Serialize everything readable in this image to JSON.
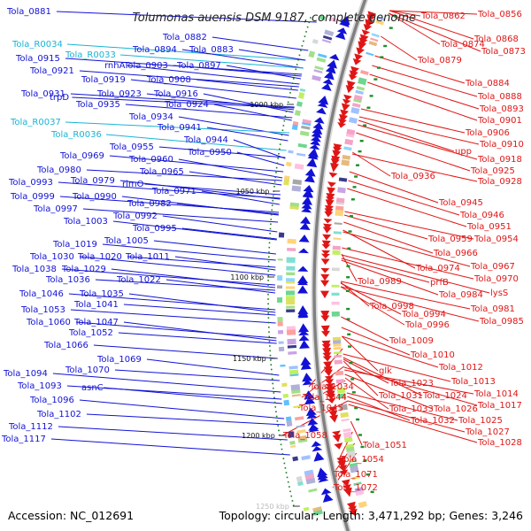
{
  "title": "Tolumonas auensis DSM 9187, complete genome",
  "footer": {
    "accession": "Accession: NC_012691",
    "summary": "Topology: circular; Length: 3,471,292 bp; Genes: 3,246"
  },
  "colors": {
    "forward": "#1212d6",
    "reverse": "#e01616",
    "rna": "#19b4d4",
    "backbone": "#808080"
  },
  "ticks": [
    "1000 kbp",
    "1050 kbp",
    "1100 kbp",
    "1150 kbp",
    "1200 kbp",
    "1250 kbp"
  ],
  "left_labels": [
    {
      "text": "Tola_0881",
      "type": "cds"
    },
    {
      "text": "Tola_0882",
      "type": "cds"
    },
    {
      "text": "Tola_R0034",
      "type": "rna"
    },
    {
      "text": "Tola_0894",
      "type": "cds"
    },
    {
      "text": "Tola_0883",
      "type": "cds"
    },
    {
      "text": "Tola_R0033",
      "type": "rna"
    },
    {
      "text": "Tola_0915",
      "type": "cds"
    },
    {
      "text": "rnhA",
      "type": "cds"
    },
    {
      "text": "Tola_0903",
      "type": "cds"
    },
    {
      "text": "Tola_0897",
      "type": "cds"
    },
    {
      "text": "Tola_0921",
      "type": "cds"
    },
    {
      "text": "Tola_0919",
      "type": "cds"
    },
    {
      "text": "Tola_0908",
      "type": "cds"
    },
    {
      "text": "Tola_0931",
      "type": "cds"
    },
    {
      "text": "Tola_0923",
      "type": "cds"
    },
    {
      "text": "Tola_0916",
      "type": "cds"
    },
    {
      "text": "trpD",
      "type": "cds"
    },
    {
      "text": "Tola_0935",
      "type": "cds"
    },
    {
      "text": "Tola_0924",
      "type": "cds"
    },
    {
      "text": "Tola_0934",
      "type": "cds"
    },
    {
      "text": "Tola_R0037",
      "type": "rna"
    },
    {
      "text": "Tola_0941",
      "type": "cds"
    },
    {
      "text": "Tola_R0036",
      "type": "rna"
    },
    {
      "text": "Tola_0944",
      "type": "cds"
    },
    {
      "text": "Tola_0955",
      "type": "cds"
    },
    {
      "text": "Tola_0950",
      "type": "cds"
    },
    {
      "text": "Tola_0969",
      "type": "cds"
    },
    {
      "text": "Tola_0960",
      "type": "cds"
    },
    {
      "text": "Tola_0980",
      "type": "cds"
    },
    {
      "text": "Tola_0965",
      "type": "cds"
    },
    {
      "text": "Tola_0993",
      "type": "cds"
    },
    {
      "text": "Tola_0979",
      "type": "cds"
    },
    {
      "text": "rimO",
      "type": "cds"
    },
    {
      "text": "Tola_0971",
      "type": "cds"
    },
    {
      "text": "Tola_0999",
      "type": "cds"
    },
    {
      "text": "Tola_0990",
      "type": "cds"
    },
    {
      "text": "Tola_0982",
      "type": "cds"
    },
    {
      "text": "Tola_0997",
      "type": "cds"
    },
    {
      "text": "Tola_0992",
      "type": "cds"
    },
    {
      "text": "Tola_1003",
      "type": "cds"
    },
    {
      "text": "Tola_0995",
      "type": "cds"
    },
    {
      "text": "Tola_1005",
      "type": "cds"
    },
    {
      "text": "Tola_1019",
      "type": "cds"
    },
    {
      "text": "Tola_1030",
      "type": "cds"
    },
    {
      "text": "Tola_1020",
      "type": "cds"
    },
    {
      "text": "Tola_1011",
      "type": "cds"
    },
    {
      "text": "Tola_1038",
      "type": "cds"
    },
    {
      "text": "Tola_1029",
      "type": "cds"
    },
    {
      "text": "Tola_1036",
      "type": "cds"
    },
    {
      "text": "Tola_1022",
      "type": "cds"
    },
    {
      "text": "Tola_1046",
      "type": "cds"
    },
    {
      "text": "Tola_1035",
      "type": "cds"
    },
    {
      "text": "Tola_1041",
      "type": "cds"
    },
    {
      "text": "Tola_1053",
      "type": "cds"
    },
    {
      "text": "Tola_1060",
      "type": "cds"
    },
    {
      "text": "Tola_1047",
      "type": "cds"
    },
    {
      "text": "Tola_1052",
      "type": "cds"
    },
    {
      "text": "Tola_1066",
      "type": "cds"
    },
    {
      "text": "Tola_1069",
      "type": "cds"
    },
    {
      "text": "Tola_1094",
      "type": "cds"
    },
    {
      "text": "Tola_1070",
      "type": "cds"
    },
    {
      "text": "Tola_1093",
      "type": "cds"
    },
    {
      "text": "asnC",
      "type": "cds"
    },
    {
      "text": "Tola_1096",
      "type": "cds"
    },
    {
      "text": "Tola_1102",
      "type": "cds"
    },
    {
      "text": "Tola_1112",
      "type": "cds"
    },
    {
      "text": "Tola_1117",
      "type": "cds"
    }
  ],
  "right_labels": [
    "Tola_0862",
    "Tola_0856",
    "Tola_0874",
    "Tola_0868",
    "Tola_0873",
    "Tola_0879",
    "Tola_0884",
    "Tola_0888",
    "Tola_0893",
    "Tola_0901",
    "Tola_0906",
    "Tola_0910",
    "upp",
    "Tola_0918",
    "Tola_0925",
    "Tola_0936",
    "Tola_0928",
    "Tola_0945",
    "Tola_0946",
    "Tola_0951",
    "Tola_0959",
    "Tola_0954",
    "Tola_0966",
    "Tola_0967",
    "Tola_0974",
    "prfB",
    "Tola_0989",
    "Tola_0970",
    "Tola_0984",
    "lysS",
    "Tola_0998",
    "Tola_0981",
    "Tola_0994",
    "Tola_0985",
    "Tola_0996",
    "Tola_1009",
    "Tola_1010",
    "Tola_1012",
    "glk",
    "Tola_1034",
    "Tola_1023",
    "Tola_1013",
    "Tola_1044",
    "Tola_1031",
    "Tola_1024",
    "Tola_1014",
    "Tola_1045",
    "Tola_1033",
    "Tola_1026",
    "Tola_1017",
    "Tola_1032",
    "Tola_1025",
    "Tola_1027",
    "Tola_1058",
    "Tola_1028",
    "Tola_1051",
    "Tola_1054",
    "Tola_1071",
    "Tola_1072"
  ]
}
